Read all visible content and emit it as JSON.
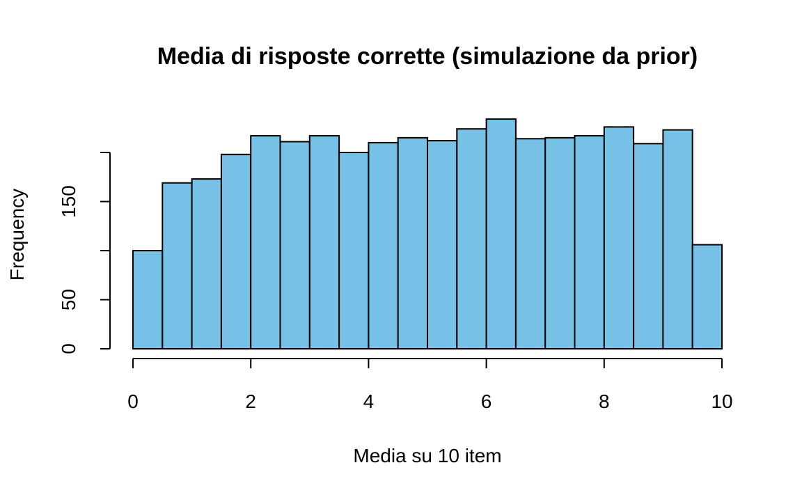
{
  "chart_data": {
    "type": "bar",
    "subtype": "histogram",
    "title": "Media di risposte corrette (simulazione da prior)",
    "xlabel": "Media su 10 item",
    "ylabel": "Frequency",
    "bin_edges": [
      0,
      0.5,
      1,
      1.5,
      2,
      2.5,
      3,
      3.5,
      4,
      4.5,
      5,
      5.5,
      6,
      6.5,
      7,
      7.5,
      8,
      8.5,
      9,
      9.5,
      10
    ],
    "values": [
      100,
      169,
      173,
      198,
      217,
      211,
      217,
      200,
      210,
      215,
      212,
      224,
      234,
      214,
      215,
      217,
      226,
      209,
      223,
      106
    ],
    "xlim": [
      0,
      10
    ],
    "ylim": [
      0,
      230
    ],
    "x_ticks": [
      0,
      2,
      4,
      6,
      8,
      10
    ],
    "x_tick_labels": [
      "0",
      "2",
      "4",
      "6",
      "8",
      "10"
    ],
    "y_ticks": [
      0,
      50,
      100,
      150,
      200
    ],
    "y_tick_labels": [
      "0",
      "50",
      "",
      "150",
      ""
    ],
    "bar_color": "#76c1e5",
    "bar_edge_color": "#000000",
    "grid": false,
    "legend": "none"
  }
}
